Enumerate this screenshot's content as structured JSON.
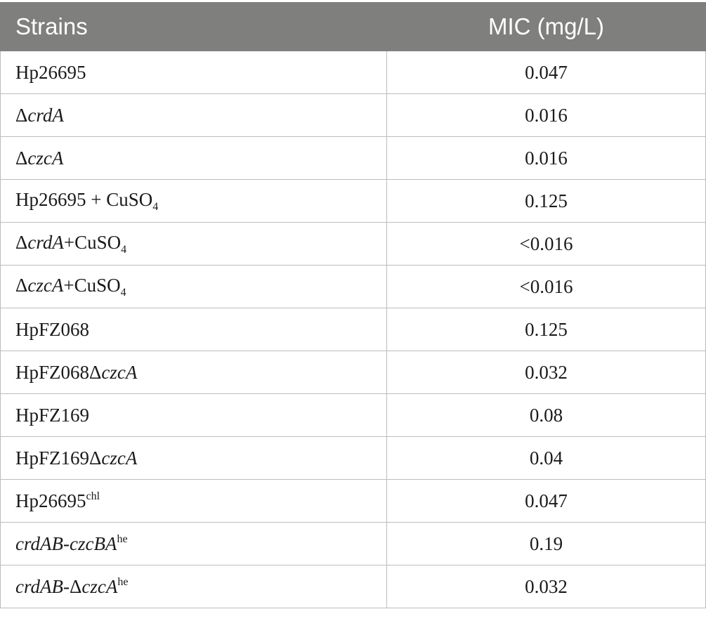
{
  "table": {
    "headers": [
      "Strains",
      "MIC (mg/L)"
    ],
    "rows": [
      {
        "strain": [
          {
            "t": "Hp26695"
          }
        ],
        "mic": "0.047"
      },
      {
        "strain": [
          {
            "t": "Δ"
          },
          {
            "t": "crdA",
            "i": true
          }
        ],
        "mic": "0.016"
      },
      {
        "strain": [
          {
            "t": "Δ"
          },
          {
            "t": "czcA",
            "i": true
          }
        ],
        "mic": "0.016"
      },
      {
        "strain": [
          {
            "t": "Hp26695 + CuSO"
          },
          {
            "t": "4",
            "sub": true
          }
        ],
        "mic": "0.125"
      },
      {
        "strain": [
          {
            "t": "Δ"
          },
          {
            "t": "crdA",
            "i": true
          },
          {
            "t": "+CuSO"
          },
          {
            "t": "4",
            "sub": true
          }
        ],
        "mic": "<0.016"
      },
      {
        "strain": [
          {
            "t": "Δ"
          },
          {
            "t": "czcA",
            "i": true
          },
          {
            "t": "+CuSO"
          },
          {
            "t": "4",
            "sub": true
          }
        ],
        "mic": "<0.016"
      },
      {
        "strain": [
          {
            "t": "HpFZ068"
          }
        ],
        "mic": "0.125"
      },
      {
        "strain": [
          {
            "t": "HpFZ068Δ"
          },
          {
            "t": "czcA",
            "i": true
          }
        ],
        "mic": "0.032"
      },
      {
        "strain": [
          {
            "t": "HpFZ169"
          }
        ],
        "mic": "0.08"
      },
      {
        "strain": [
          {
            "t": "HpFZ169Δ"
          },
          {
            "t": "czcA",
            "i": true
          }
        ],
        "mic": "0.04"
      },
      {
        "strain": [
          {
            "t": "Hp26695"
          },
          {
            "t": "chl",
            "sup": true
          }
        ],
        "mic": "0.047"
      },
      {
        "strain": [
          {
            "t": "crdAB-czcBA",
            "i": true
          },
          {
            "t": "he",
            "sup": true
          }
        ],
        "mic": "0.19"
      },
      {
        "strain": [
          {
            "t": "crdAB",
            "i": true
          },
          {
            "t": "-Δ"
          },
          {
            "t": "czcA",
            "i": true
          },
          {
            "t": "he",
            "sup": true
          }
        ],
        "mic": "0.032"
      }
    ]
  }
}
